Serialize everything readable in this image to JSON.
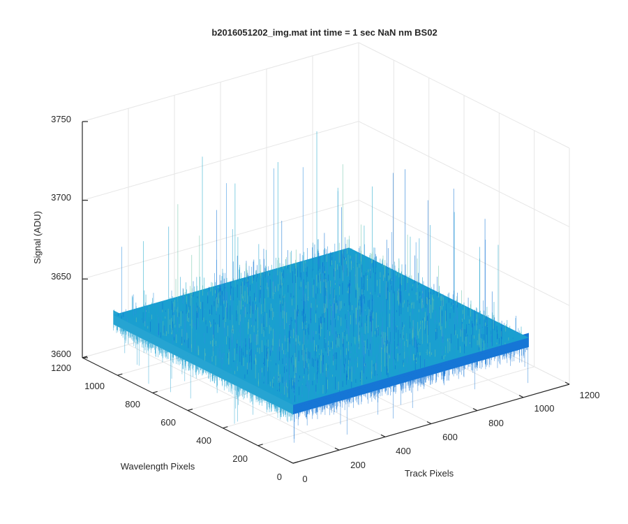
{
  "chart_data": {
    "type": "surface",
    "title": "b2016051202_img.mat int time = 1 sec  NaN nm BS02",
    "xlabel": "Track Pixels",
    "ylabel": "Wavelength Pixels",
    "zlabel": "Signal (ADU)",
    "xlim": [
      0,
      1200
    ],
    "ylim": [
      0,
      1200
    ],
    "zlim": [
      3600,
      3750
    ],
    "x_ticks": [
      "0",
      "200",
      "400",
      "600",
      "800",
      "1000",
      "1200"
    ],
    "y_ticks": [
      "0",
      "200",
      "400",
      "600",
      "800",
      "1000",
      "1200"
    ],
    "z_ticks": [
      "3600",
      "3650",
      "3700",
      "3750"
    ],
    "x_tick_values": [
      0,
      200,
      400,
      600,
      800,
      1000,
      1200
    ],
    "y_tick_values": [
      0,
      200,
      400,
      600,
      800,
      1000,
      1200
    ],
    "z_tick_values": [
      3600,
      3650,
      3700,
      3750
    ],
    "surface": {
      "x_range": [
        0,
        1024
      ],
      "y_range": [
        0,
        1024
      ],
      "mean_signal": 3637,
      "noise_range": [
        3615,
        3725
      ],
      "colormap": "parula"
    },
    "grid": true,
    "colors": {
      "surface_dark": "#0a6fd4",
      "surface_mid": "#1a9fd0",
      "surface_light": "#6cc4a8",
      "grid": "#e6e6e6",
      "axis": "#262626"
    }
  }
}
